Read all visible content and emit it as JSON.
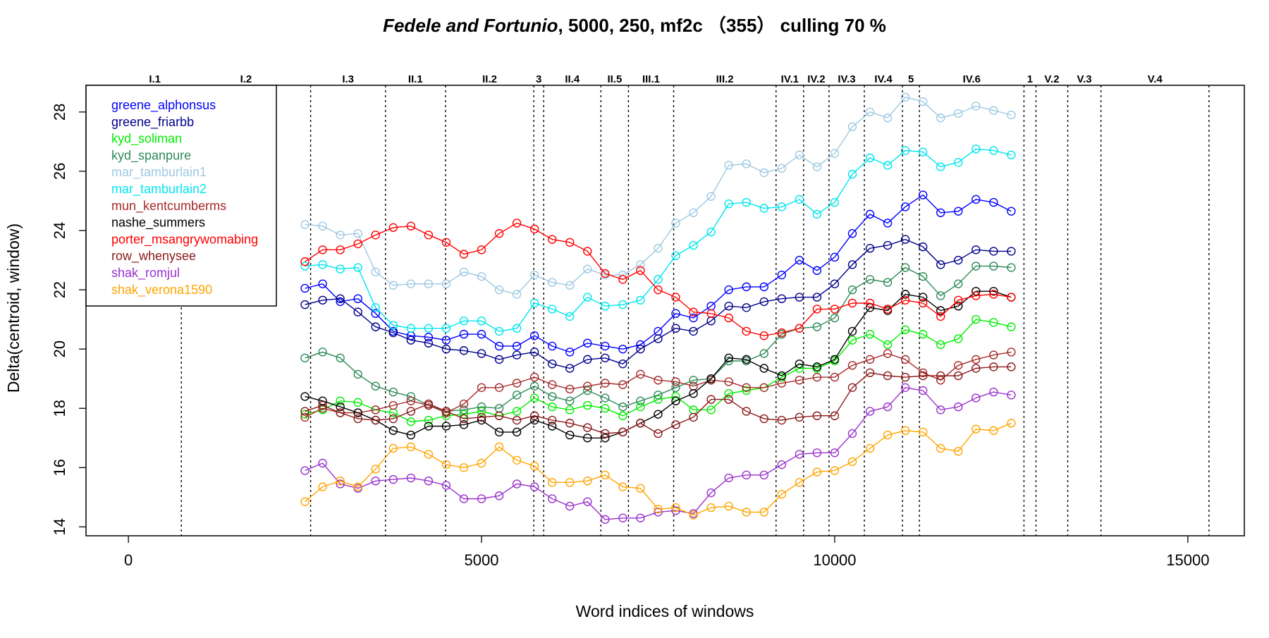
{
  "chart_data": {
    "type": "line",
    "title": {
      "italic": "Fedele and Fortunio",
      "rest": ", 5000, 250, mf2c  （355）    culling 70 %"
    },
    "xlabel": "Word indices of windows",
    "ylabel": "Delta(centroid, window)",
    "xlim": [
      -600,
      15800
    ],
    "ylim": [
      13.7,
      28.9
    ],
    "xticks": [
      0,
      5000,
      10000,
      15000
    ],
    "yticks": [
      14,
      16,
      18,
      20,
      22,
      24,
      26,
      28
    ],
    "grid": false,
    "legend_position": "top-left",
    "marker": "open-circle",
    "scenes": [
      {
        "label": "I.1",
        "boundary": 750
      },
      {
        "label": "I.2",
        "boundary": 2580
      },
      {
        "label": "I.3",
        "boundary": 3640
      },
      {
        "label": "II.1",
        "boundary": 4490
      },
      {
        "label": "II.2",
        "boundary": 5740
      },
      {
        "label": "3",
        "boundary": 5880
      },
      {
        "label": "II.4",
        "boundary": 6690
      },
      {
        "label": "II.5",
        "boundary": 7080
      },
      {
        "label": "III.1",
        "boundary": 7720
      },
      {
        "label": "III.2",
        "boundary": 9170
      },
      {
        "label": "IV.1",
        "boundary": 9560
      },
      {
        "label": "IV.2",
        "boundary": 9920
      },
      {
        "label": "IV.3",
        "boundary": 10420
      },
      {
        "label": "IV.4",
        "boundary": 10960
      },
      {
        "label": "5",
        "boundary": 11200
      },
      {
        "label": "IV.6",
        "boundary": 12680
      },
      {
        "label": "1",
        "boundary": 12850
      },
      {
        "label": "V.2",
        "boundary": 13300
      },
      {
        "label": "V.3",
        "boundary": 13770
      },
      {
        "label": "V.4",
        "boundary": 15300
      }
    ],
    "x": [
      2500,
      2750,
      3000,
      3250,
      3500,
      3750,
      4000,
      4250,
      4500,
      4750,
      5000,
      5250,
      5500,
      5750,
      6000,
      6250,
      6500,
      6750,
      7000,
      7250,
      7500,
      7750,
      8000,
      8250,
      8500,
      8750,
      9000,
      9250,
      9500,
      9750,
      10000,
      10250,
      10500,
      10750,
      11000,
      11250,
      11500,
      11750,
      12000,
      12250,
      12500
    ],
    "series": [
      {
        "name": "greene_alphonsus",
        "color": "#0000ff",
        "values": [
          22.05,
          22.2,
          21.6,
          21.7,
          21.2,
          20.6,
          20.45,
          20.4,
          20.3,
          20.5,
          20.5,
          20.1,
          20.1,
          20.45,
          20.1,
          19.9,
          20.2,
          20.1,
          20.0,
          20.15,
          20.6,
          21.2,
          21.05,
          21.45,
          22.0,
          22.1,
          22.1,
          22.5,
          23.0,
          22.65,
          23.1,
          23.9,
          24.55,
          24.25,
          24.8,
          25.2,
          24.6,
          24.65,
          25.05,
          24.95,
          24.65
        ]
      },
      {
        "name": "greene_friarbb",
        "color": "#00008b",
        "values": [
          21.5,
          21.65,
          21.7,
          21.25,
          20.75,
          20.55,
          20.3,
          20.2,
          20.0,
          19.95,
          19.85,
          19.65,
          19.8,
          19.9,
          19.5,
          19.35,
          19.65,
          19.7,
          19.5,
          20.0,
          20.35,
          20.7,
          20.6,
          20.95,
          21.45,
          21.4,
          21.6,
          21.7,
          21.75,
          21.75,
          22.2,
          22.85,
          23.4,
          23.5,
          23.7,
          23.45,
          22.85,
          23.0,
          23.35,
          23.3,
          23.3
        ]
      },
      {
        "name": "kyd_soliman",
        "color": "#00ee00",
        "values": [
          17.8,
          17.95,
          18.25,
          18.2,
          17.95,
          17.85,
          17.55,
          17.6,
          17.75,
          17.8,
          17.9,
          17.75,
          17.9,
          18.35,
          18.05,
          17.95,
          18.1,
          18.0,
          17.75,
          18.05,
          18.3,
          18.4,
          17.95,
          17.95,
          18.5,
          18.6,
          18.7,
          19.05,
          19.35,
          19.35,
          19.6,
          20.3,
          20.5,
          20.15,
          20.65,
          20.5,
          20.15,
          20.35,
          21.0,
          20.9,
          20.75
        ]
      },
      {
        "name": "kyd_spanpure",
        "color": "#2e8b57",
        "values": [
          19.7,
          19.9,
          19.7,
          19.15,
          18.75,
          18.55,
          18.4,
          18.1,
          17.9,
          17.95,
          18.05,
          18.0,
          18.45,
          18.75,
          18.4,
          18.25,
          18.6,
          18.35,
          18.05,
          18.25,
          18.45,
          18.7,
          18.95,
          19.0,
          19.6,
          19.6,
          19.85,
          20.5,
          20.7,
          20.75,
          21.05,
          22.0,
          22.35,
          22.25,
          22.75,
          22.45,
          21.8,
          22.2,
          22.8,
          22.8,
          22.75
        ]
      },
      {
        "name": "mar_tamburlain1",
        "color": "#9ec9e2",
        "values": [
          24.2,
          24.15,
          23.85,
          23.9,
          22.6,
          22.15,
          22.2,
          22.2,
          22.2,
          22.6,
          22.45,
          22.0,
          21.85,
          22.5,
          22.25,
          22.15,
          22.7,
          22.5,
          22.5,
          22.85,
          23.4,
          24.25,
          24.6,
          25.15,
          26.2,
          26.25,
          25.95,
          26.1,
          26.55,
          26.15,
          26.6,
          27.5,
          28.0,
          27.8,
          28.5,
          28.35,
          27.8,
          27.95,
          28.2,
          28.05,
          27.9
        ]
      },
      {
        "name": "mar_tamburlain2",
        "color": "#00e5ee",
        "values": [
          22.8,
          22.85,
          22.7,
          22.75,
          21.4,
          20.8,
          20.7,
          20.7,
          20.7,
          20.95,
          20.95,
          20.6,
          20.7,
          21.55,
          21.35,
          21.1,
          21.75,
          21.45,
          21.5,
          21.65,
          22.35,
          23.15,
          23.5,
          23.95,
          24.9,
          24.95,
          24.75,
          24.8,
          25.05,
          24.55,
          24.95,
          25.9,
          26.45,
          26.2,
          26.7,
          26.65,
          26.15,
          26.3,
          26.75,
          26.7,
          26.55
        ]
      },
      {
        "name": "mun_kentcumberms",
        "color": "#a52a2a",
        "values": [
          17.7,
          18.0,
          17.85,
          17.85,
          17.95,
          18.1,
          18.25,
          18.1,
          17.85,
          18.15,
          18.7,
          18.7,
          18.85,
          19.05,
          18.8,
          18.65,
          18.75,
          18.85,
          18.8,
          19.15,
          18.95,
          18.9,
          18.75,
          18.95,
          18.9,
          18.7,
          18.7,
          18.85,
          18.95,
          19.05,
          19.05,
          19.45,
          19.65,
          19.85,
          19.65,
          19.2,
          18.95,
          19.45,
          19.65,
          19.8,
          19.9
        ]
      },
      {
        "name": "nashe_summers",
        "color": "#000000",
        "values": [
          18.4,
          18.25,
          18.05,
          17.85,
          17.6,
          17.25,
          17.1,
          17.4,
          17.4,
          17.45,
          17.6,
          17.2,
          17.2,
          17.6,
          17.4,
          17.1,
          17.0,
          17.0,
          17.2,
          17.5,
          17.8,
          18.25,
          18.5,
          19.0,
          19.7,
          19.65,
          19.35,
          19.1,
          19.5,
          19.4,
          19.65,
          20.6,
          21.4,
          21.3,
          21.85,
          21.75,
          21.3,
          21.45,
          21.95,
          21.95,
          21.75
        ]
      },
      {
        "name": "porter_msangrywomabing",
        "color": "#ff0000",
        "values": [
          22.95,
          23.35,
          23.35,
          23.55,
          23.85,
          24.1,
          24.15,
          23.85,
          23.6,
          23.2,
          23.35,
          23.9,
          24.25,
          24.05,
          23.7,
          23.6,
          23.3,
          22.55,
          22.35,
          22.65,
          22.0,
          21.75,
          21.25,
          21.2,
          21.05,
          20.6,
          20.45,
          20.55,
          20.7,
          21.35,
          21.35,
          21.55,
          21.55,
          21.35,
          21.65,
          21.55,
          21.1,
          21.65,
          21.8,
          21.85,
          21.75
        ]
      },
      {
        "name": "row_whenysee",
        "color": "#8b1a1a",
        "values": [
          17.9,
          18.1,
          17.85,
          17.65,
          17.6,
          17.65,
          17.9,
          18.15,
          17.9,
          17.65,
          17.7,
          17.75,
          17.6,
          17.75,
          17.6,
          17.5,
          17.35,
          17.15,
          17.2,
          17.5,
          17.15,
          17.45,
          17.7,
          18.3,
          18.3,
          17.9,
          17.65,
          17.6,
          17.7,
          17.75,
          17.75,
          18.7,
          19.2,
          19.1,
          19.05,
          19.1,
          19.1,
          19.1,
          19.35,
          19.4,
          19.4
        ]
      },
      {
        "name": "shak_romjul",
        "color": "#9a32cd",
        "values": [
          15.9,
          16.15,
          15.45,
          15.3,
          15.55,
          15.6,
          15.65,
          15.55,
          15.4,
          14.95,
          14.95,
          15.05,
          15.45,
          15.35,
          14.95,
          14.7,
          14.85,
          14.25,
          14.3,
          14.3,
          14.5,
          14.55,
          14.45,
          15.15,
          15.65,
          15.75,
          15.75,
          16.1,
          16.45,
          16.5,
          16.5,
          17.15,
          17.9,
          18.05,
          18.7,
          18.6,
          17.95,
          18.05,
          18.35,
          18.55,
          18.45
        ]
      },
      {
        "name": "shak_verona1590",
        "color": "#ffa500",
        "values": [
          14.85,
          15.35,
          15.55,
          15.35,
          15.95,
          16.65,
          16.7,
          16.45,
          16.1,
          16.0,
          16.15,
          16.7,
          16.25,
          16.05,
          15.5,
          15.5,
          15.55,
          15.75,
          15.35,
          15.3,
          14.6,
          14.65,
          14.4,
          14.65,
          14.7,
          14.5,
          14.5,
          15.1,
          15.5,
          15.85,
          15.9,
          16.2,
          16.65,
          17.1,
          17.25,
          17.2,
          16.65,
          16.55,
          17.3,
          17.25,
          17.5
        ]
      }
    ]
  }
}
